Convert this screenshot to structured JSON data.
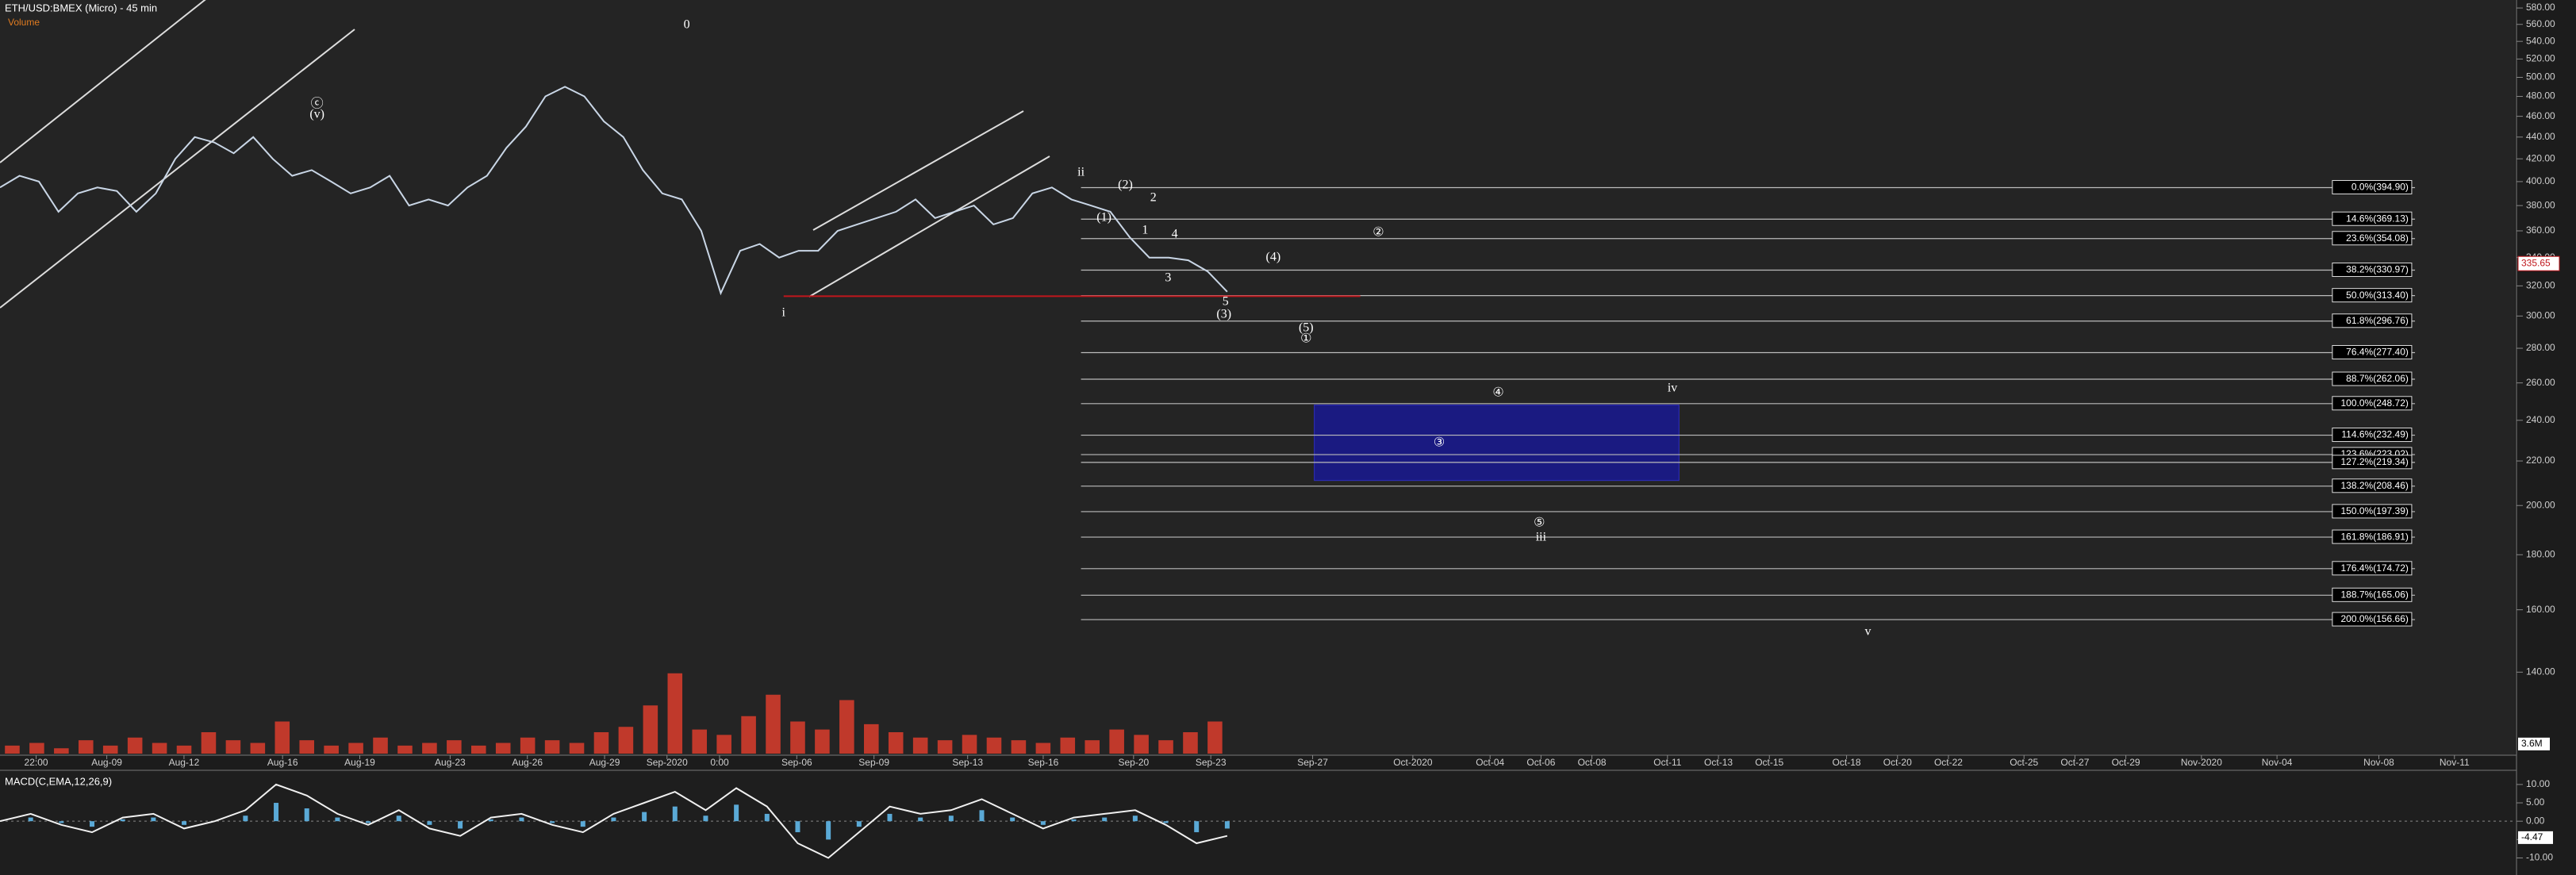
{
  "chart_data": [
    {
      "type": "line",
      "title": "ETH/USD:BMEX (Micro) - 45 min",
      "log_scale": true,
      "ylim": [
        118,
        590
      ],
      "yticks": [
        {
          "value": 580,
          "label": "580.00"
        },
        {
          "value": 560,
          "label": "560.00"
        },
        {
          "value": 540,
          "label": "540.00"
        },
        {
          "value": 520,
          "label": "520.00"
        },
        {
          "value": 500,
          "label": "500.00"
        },
        {
          "value": 480,
          "label": "480.00"
        },
        {
          "value": 460,
          "label": "460.00"
        },
        {
          "value": 440,
          "label": "440.00"
        },
        {
          "value": 420,
          "label": "420.00"
        },
        {
          "value": 400,
          "label": "400.00"
        },
        {
          "value": 380,
          "label": "380.00"
        },
        {
          "value": 360,
          "label": "360.00"
        },
        {
          "value": 340,
          "label": "340.00"
        },
        {
          "value": 320,
          "label": "320.00"
        },
        {
          "value": 300,
          "label": "300.00"
        },
        {
          "value": 280,
          "label": "280.00"
        },
        {
          "value": 260,
          "label": "260.00"
        },
        {
          "value": 240,
          "label": "240.00"
        },
        {
          "value": 220,
          "label": "220.00"
        },
        {
          "value": 200,
          "label": "200.00"
        },
        {
          "value": 180,
          "label": "180.00"
        },
        {
          "value": 160,
          "label": "160.00"
        },
        {
          "value": 140,
          "label": "140.00"
        }
      ],
      "x_ticks": [
        "22:00",
        "Aug-09",
        "Aug-12",
        "Aug-16",
        "Aug-19",
        "Aug-23",
        "Aug-26",
        "Aug-29",
        "Sep-2020",
        "0:00",
        "Sep-06",
        "Sep-09",
        "Sep-13",
        "Sep-16",
        "Sep-20",
        "Sep-23",
        "Sep-27",
        "Oct-2020",
        "Oct-04",
        "Oct-06",
        "Oct-08",
        "Oct-11",
        "Oct-13",
        "Oct-15",
        "Oct-18",
        "Oct-20",
        "Oct-22",
        "Oct-25",
        "Oct-27",
        "Oct-29",
        "Nov-2020",
        "Nov-04",
        "Nov-08",
        "Nov-11"
      ],
      "series": [
        {
          "color": "#c9d6e6",
          "values": [
            395,
            405,
            400,
            375,
            390,
            395,
            392,
            375,
            390,
            420,
            440,
            435,
            425,
            440,
            420,
            405,
            410,
            400,
            390,
            395,
            405,
            380,
            385,
            380,
            395,
            405,
            430,
            450,
            480,
            490,
            480,
            455,
            440,
            410,
            390,
            385,
            360,
            315,
            345,
            350,
            340,
            345,
            345,
            360,
            365,
            370,
            375,
            385,
            370,
            375,
            380,
            365,
            370,
            390,
            395,
            385,
            380,
            375,
            355,
            340,
            340,
            338,
            330,
            316
          ]
        }
      ],
      "fib_levels": [
        {
          "value": 394.9,
          "label": "0.0%(394.90)"
        },
        {
          "value": 369.13,
          "label": "14.6%(369.13)"
        },
        {
          "value": 354.08,
          "label": "23.6%(354.08)"
        },
        {
          "value": 330.97,
          "label": "38.2%(330.97)"
        },
        {
          "value": 313.4,
          "label": "50.0%(313.40)"
        },
        {
          "value": 296.76,
          "label": "61.8%(296.76)"
        },
        {
          "value": 277.4,
          "label": "76.4%(277.40)"
        },
        {
          "value": 262.06,
          "label": "88.7%(262.06)"
        },
        {
          "value": 248.72,
          "label": "100.0%(248.72)"
        },
        {
          "value": 232.49,
          "label": "114.6%(232.49)"
        },
        {
          "value": 223.02,
          "label": "123.6%(223.02)"
        },
        {
          "value": 219.34,
          "label": "127.2%(219.34)"
        },
        {
          "value": 208.46,
          "label": "138.2%(208.46)"
        },
        {
          "value": 197.39,
          "label": "150.0%(197.39)"
        },
        {
          "value": 186.91,
          "label": "161.8%(186.91)"
        },
        {
          "value": 174.72,
          "label": "176.4%(174.72)"
        },
        {
          "value": 165.06,
          "label": "188.7%(165.06)"
        },
        {
          "value": 156.66,
          "label": "200.0%(156.66)"
        }
      ],
      "zone": {
        "values": [
          248,
          211
        ],
        "color": "#1a1a8c"
      },
      "support": {
        "value": 313,
        "color": "#c0161c"
      },
      "last_price": {
        "value": 335.65,
        "label": "335.65",
        "color": "#c0161c"
      },
      "annotations": [
        "0",
        "ⓒ",
        "(v)",
        "i",
        "ii",
        "(2)",
        "2",
        "(1)",
        "1",
        "4",
        "3",
        "(4)",
        "②",
        "5",
        "(3)",
        "(5)",
        "①",
        "④",
        "iv",
        "③",
        "⑤",
        "iii",
        "v"
      ]
    },
    {
      "type": "bar",
      "title": "Volume",
      "color": "#c0392b",
      "ylim": [
        0,
        40
      ],
      "yticks": [
        {
          "value": 3.6,
          "label": "3.6M"
        }
      ],
      "values": [
        3,
        4,
        2,
        5,
        3,
        6,
        4,
        3,
        8,
        5,
        4,
        12,
        5,
        3,
        4,
        6,
        3,
        4,
        5,
        3,
        4,
        6,
        5,
        4,
        8,
        10,
        18,
        30,
        9,
        7,
        14,
        22,
        12,
        9,
        20,
        11,
        8,
        6,
        5,
        7,
        6,
        5,
        4,
        6,
        5,
        9,
        7,
        5,
        8,
        12
      ]
    },
    {
      "type": "line",
      "title": "MACD(C,EMA,12,26,9)",
      "ylim": [
        -14,
        13
      ],
      "yticks": [
        {
          "value": 10,
          "label": "10.00"
        },
        {
          "value": 5,
          "label": "5.00"
        },
        {
          "value": 0,
          "label": "0.00"
        },
        {
          "value": -5,
          "label": "-5.00"
        },
        {
          "value": -10,
          "label": "-10.00"
        }
      ],
      "series": [
        {
          "color": "#f0f0f0",
          "values": [
            0,
            2,
            -1,
            -3,
            1,
            2,
            -2,
            0,
            3,
            10,
            7,
            2,
            -1,
            3,
            -2,
            -4,
            1,
            2,
            -1,
            -3,
            2,
            5,
            8,
            3,
            9,
            4,
            -6,
            -10,
            -3,
            4,
            2,
            3,
            6,
            2,
            -2,
            1,
            2,
            3,
            -1,
            -6,
            -4
          ]
        }
      ],
      "last_value": {
        "value": -4.47,
        "label": "-4.47"
      }
    }
  ]
}
